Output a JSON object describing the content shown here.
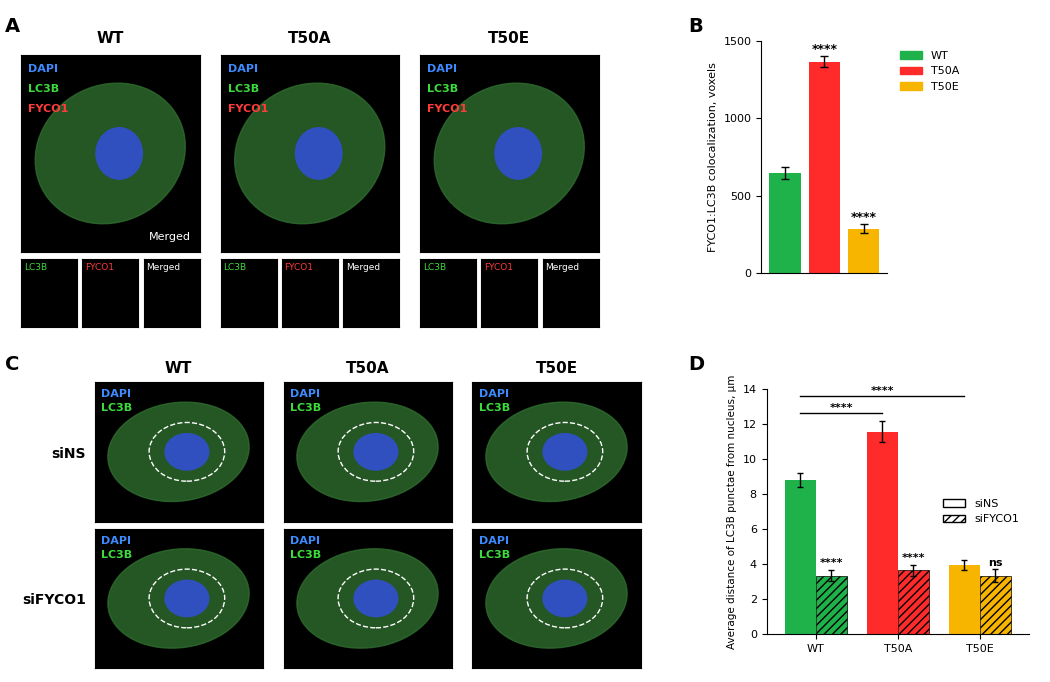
{
  "panel_labels": [
    "A",
    "B",
    "C",
    "D"
  ],
  "images": {
    "A": {
      "columns": [
        "WT",
        "T50A",
        "T50E"
      ],
      "channels": [
        "DAPI",
        "LC3B",
        "FYCO1"
      ],
      "merged_label": "Merged",
      "inset_labels": [
        "LC3B",
        "FYCO1",
        "Merged"
      ]
    },
    "C": {
      "columns": [
        "WT",
        "T50A",
        "T50E"
      ],
      "rows": [
        "siNS",
        "siFYCO1"
      ],
      "channels": [
        "DAPI",
        "LC3B"
      ]
    }
  },
  "chart_data": [
    {
      "type": "bar",
      "categories": [
        "WT",
        "T50A",
        "T50E"
      ],
      "values": [
        645,
        1365,
        285
      ],
      "errors": [
        40,
        35,
        30
      ],
      "colors": [
        "#1fb24a",
        "#ff2b2b",
        "#f7b500"
      ],
      "y_label": "FYCO1:LC3B colocalization, voxels",
      "ylim": [
        0,
        1500
      ],
      "yticks": [
        0,
        500,
        1000,
        1500
      ],
      "legend": "right",
      "significance": [
        null,
        "****",
        "****"
      ],
      "tick_labels": "y"
    },
    {
      "type": "bar",
      "categories": [
        "WT",
        "T50A",
        "T50E"
      ],
      "colors": [
        "#1fb24a",
        "#ff2b2b",
        "#f7b500"
      ],
      "series": [
        {
          "name": "siNS",
          "values": [
            8.8,
            11.55,
            3.95
          ],
          "errors": [
            0.4,
            0.6,
            0.3
          ]
        },
        {
          "name": "siFYCO1",
          "values": [
            3.35,
            3.65,
            3.35
          ],
          "errors": [
            0.3,
            0.3,
            0.35
          ],
          "significance": [
            "****",
            "****",
            "ns"
          ]
        }
      ],
      "y_label": "Average distance of LC3B punctae from nucleus, µm",
      "ylim": [
        0,
        14
      ],
      "yticks": [
        0,
        2,
        4,
        6,
        8,
        10,
        12,
        14
      ],
      "legend": "center right",
      "comparisons": [
        {
          "from": "WT",
          "to": "T50A",
          "label": "****"
        },
        {
          "from": "WT",
          "to": "T50E",
          "label": "****"
        }
      ]
    }
  ]
}
